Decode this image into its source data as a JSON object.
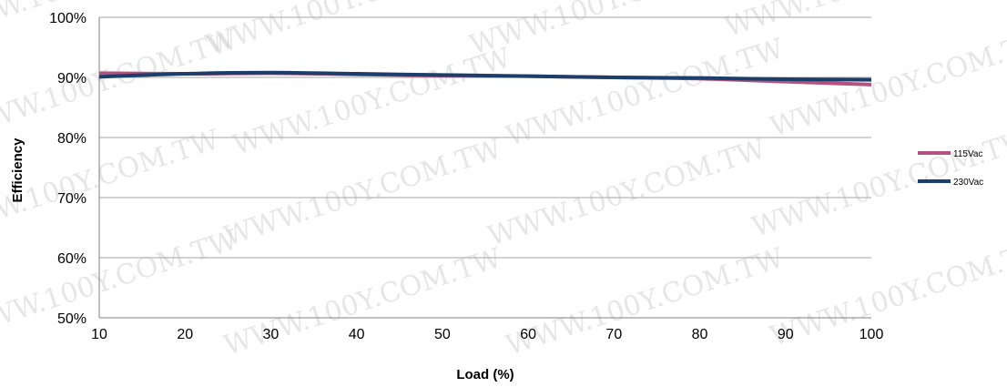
{
  "chart_data": {
    "type": "line",
    "xlabel": "Load (%)",
    "ylabel": "Efficiency",
    "xlim": [
      10,
      100
    ],
    "ylim": [
      50,
      100
    ],
    "x_ticks": [
      "10",
      "20",
      "30",
      "40",
      "50",
      "60",
      "70",
      "80",
      "90",
      "100"
    ],
    "y_ticks": [
      "50%",
      "60%",
      "70%",
      "80%",
      "90%",
      "100%"
    ],
    "grid": "horizontal",
    "legend_position": "right",
    "series": [
      {
        "name": "115Vac",
        "color": "#b5517f",
        "x": [
          10,
          20,
          30,
          40,
          50,
          60,
          70,
          80,
          90,
          100
        ],
        "y": [
          90.7,
          90.6,
          90.7,
          90.5,
          90.3,
          90.2,
          90.0,
          89.8,
          89.3,
          88.8
        ]
      },
      {
        "name": "230Vac",
        "color": "#1b3f6a",
        "x": [
          10,
          20,
          30,
          40,
          50,
          60,
          70,
          80,
          90,
          100
        ],
        "y": [
          90.1,
          90.6,
          90.8,
          90.6,
          90.4,
          90.2,
          90.0,
          89.9,
          89.7,
          89.6
        ]
      }
    ]
  },
  "watermark_text": "WWW.100Y.COM.TW"
}
